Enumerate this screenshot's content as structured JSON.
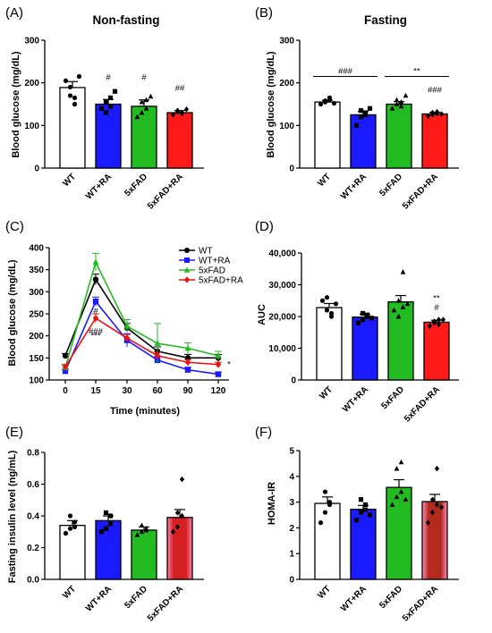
{
  "panels": [
    {
      "letter": "(A)",
      "title": "Non-fasting",
      "chart_data": {
        "type": "bar",
        "ylabel": "Blood glucose (mg/dL)",
        "ylim": [
          0,
          300
        ],
        "yticks": [
          0,
          100,
          200,
          300
        ],
        "ytick_labels": [
          "0",
          "100",
          "200",
          "300"
        ],
        "categories": [
          "WT",
          "WT+RA",
          "5xFAD",
          "5xFAD+RA"
        ],
        "values": [
          189,
          150,
          145,
          130
        ],
        "errors": [
          14,
          11,
          15,
          5
        ],
        "colors": [
          "#ffffff",
          "#1a1aff",
          "#22bb22",
          "#ff1a1a"
        ],
        "markers": [
          "circle",
          "square",
          "triangle",
          "diamond"
        ],
        "points": [
          [
            205,
            170,
            165,
            190,
            150,
            215
          ],
          [
            140,
            155,
            165,
            130,
            145,
            180
          ],
          [
            120,
            130,
            140,
            155,
            160,
            168
          ],
          [
            125,
            132,
            128,
            135,
            130,
            138
          ]
        ],
        "annotations": [
          {
            "index": 1,
            "text": "#"
          },
          {
            "index": 2,
            "text": "#"
          },
          {
            "index": 3,
            "text": "##"
          }
        ]
      }
    },
    {
      "letter": "(B)",
      "title": "Fasting",
      "chart_data": {
        "type": "bar",
        "ylabel": "Blood glucose (mg/dL)",
        "ylim": [
          0,
          300
        ],
        "yticks": [
          0,
          100,
          200,
          300
        ],
        "ytick_labels": [
          "0",
          "100",
          "200",
          "300"
        ],
        "categories": [
          "WT",
          "WT+RA",
          "5xFAD",
          "5xFAD+RA"
        ],
        "values": [
          155,
          125,
          150,
          127
        ],
        "errors": [
          4,
          8,
          6,
          4
        ],
        "colors": [
          "#ffffff",
          "#1a1aff",
          "#22bb22",
          "#ff1a1a"
        ],
        "markers": [
          "circle",
          "square",
          "triangle",
          "diamond"
        ],
        "points": [
          [
            150,
            155,
            160,
            158,
            165,
            152
          ],
          [
            100,
            120,
            130,
            135,
            125,
            140
          ],
          [
            140,
            150,
            145,
            160,
            155,
            170
          ],
          [
            122,
            125,
            128,
            130,
            132,
            127
          ]
        ],
        "annotations": [
          {
            "index": 3,
            "text": "###"
          }
        ],
        "brackets": [
          {
            "from": 0,
            "to": 1,
            "text": "###",
            "y": 215
          },
          {
            "from": 2,
            "to": 3,
            "text": "**",
            "y": 215
          }
        ]
      }
    },
    {
      "letter": "(C)",
      "chart_data": {
        "type": "line",
        "xlabel": "Time (minutes)",
        "ylabel": "Blood glucose (mg/dL)",
        "x": [
          0,
          15,
          30,
          60,
          90,
          120
        ],
        "xtick_labels": [
          "0",
          "15",
          "30",
          "60",
          "90",
          "120"
        ],
        "ylim": [
          100,
          400
        ],
        "yticks": [
          100,
          150,
          200,
          250,
          300,
          350,
          400
        ],
        "ytick_labels": [
          "100",
          "150",
          "200",
          "250",
          "300",
          "350",
          "400"
        ],
        "series": [
          {
            "name": "WT",
            "color": "#000000",
            "marker": "circle",
            "values": [
              155,
              328,
              218,
              165,
              150,
              150
            ],
            "errors": [
              5,
              12,
              10,
              10,
              8,
              8
            ]
          },
          {
            "name": "WT+RA",
            "color": "#1a1aff",
            "marker": "square",
            "values": [
              120,
              278,
              190,
              145,
              123,
              113
            ],
            "errors": [
              4,
              10,
              15,
              8,
              6,
              5
            ]
          },
          {
            "name": "5xFAD",
            "color": "#22bb22",
            "marker": "triangle",
            "values": [
              128,
              367,
              222,
              183,
              172,
              155
            ],
            "errors": [
              5,
              20,
              15,
              45,
              12,
              10
            ]
          },
          {
            "name": "5xFAD+RA",
            "color": "#ee1111",
            "marker": "diamond",
            "values": [
              130,
              240,
              195,
              155,
              140,
              135
            ],
            "errors": [
              5,
              10,
              8,
              8,
              6,
              5
            ]
          }
        ],
        "annotations": [
          {
            "x": 15,
            "y": 258,
            "text": "#"
          },
          {
            "x": 15,
            "y": 213,
            "text": "###"
          },
          {
            "x": 15,
            "y": 202,
            "text": "***"
          },
          {
            "x": 120,
            "y": 137,
            "text": "*"
          }
        ],
        "legend_position": "top-right"
      }
    },
    {
      "letter": "(D)",
      "chart_data": {
        "type": "bar",
        "ylabel": "AUC",
        "ylim": [
          0,
          40000
        ],
        "yticks": [
          0,
          10000,
          20000,
          30000,
          40000
        ],
        "ytick_labels": [
          "0",
          "10,000",
          "20,000",
          "30,000",
          "40,000"
        ],
        "categories": [
          "WT",
          "WT+RA",
          "5xFAD",
          "5xFAD+RA"
        ],
        "values": [
          22800,
          19800,
          24600,
          18200
        ],
        "errors": [
          1300,
          900,
          2000,
          600
        ],
        "colors": [
          "#ffffff",
          "#1a1aff",
          "#22bb22",
          "#ff1a1a"
        ],
        "markers": [
          "circle",
          "square",
          "triangle",
          "diamond"
        ],
        "points": [
          [
            25000,
            26000,
            21000,
            22000,
            20000,
            24000
          ],
          [
            18000,
            19000,
            20000,
            21000,
            20500,
            19500
          ],
          [
            22000,
            20000,
            23000,
            25000,
            34000,
            24000
          ],
          [
            17000,
            18000,
            19000,
            18500,
            17500,
            19000
          ]
        ],
        "annotations": [
          {
            "index": 3,
            "text": "**",
            "y": 25000
          },
          {
            "index": 3,
            "text": "#",
            "y": 22000
          }
        ]
      }
    },
    {
      "letter": "(E)",
      "chart_data": {
        "type": "bar",
        "ylabel": "Fasting insulin level (ng/mL)",
        "ylim": [
          0,
          0.8
        ],
        "yticks": [
          0,
          0.2,
          0.4,
          0.6,
          0.8
        ],
        "ytick_labels": [
          "0.0",
          "0.2",
          "0.4",
          "0.6",
          "0.8"
        ],
        "categories": [
          "WT",
          "WT+RA",
          "5xFAD",
          "5xFAD+RA"
        ],
        "values": [
          0.34,
          0.37,
          0.31,
          0.39
        ],
        "errors": [
          0.03,
          0.03,
          0.02,
          0.05
        ],
        "colors": [
          "#ffffff",
          "#1a1aff",
          "#22bb22",
          "#d42020"
        ],
        "markers": [
          "circle",
          "square",
          "triangle",
          "diamond"
        ],
        "points": [
          [
            0.29,
            0.32,
            0.33,
            0.4,
            0.36
          ],
          [
            0.3,
            0.32,
            0.35,
            0.42,
            0.4
          ],
          [
            0.28,
            0.3,
            0.31,
            0.34,
            0.32
          ],
          [
            0.3,
            0.33,
            0.4,
            0.42,
            0.63
          ]
        ]
      }
    },
    {
      "letter": "(F)",
      "chart_data": {
        "type": "bar",
        "ylabel": "HOMA-IR",
        "ylim": [
          0,
          5
        ],
        "yticks": [
          0,
          1,
          2,
          3,
          4,
          5
        ],
        "ytick_labels": [
          "0",
          "1",
          "2",
          "3",
          "4",
          "5"
        ],
        "categories": [
          "WT",
          "WT+RA",
          "5xFAD",
          "5xFAD+RA"
        ],
        "values": [
          2.95,
          2.72,
          3.57,
          3.02
        ],
        "errors": [
          0.25,
          0.15,
          0.3,
          0.28
        ],
        "colors": [
          "#ffffff",
          "#1a1aff",
          "#22bb22",
          "#b52a1e"
        ],
        "markers": [
          "circle",
          "square",
          "triangle",
          "diamond"
        ],
        "points": [
          [
            2.2,
            2.6,
            3.0,
            3.4,
            2.9
          ],
          [
            2.3,
            2.6,
            2.9,
            3.1,
            2.7,
            2.5
          ],
          [
            2.9,
            3.2,
            3.4,
            4.3,
            4.55,
            3.1
          ],
          [
            2.2,
            2.6,
            2.9,
            3.1,
            4.3,
            2.8
          ]
        ]
      }
    }
  ]
}
